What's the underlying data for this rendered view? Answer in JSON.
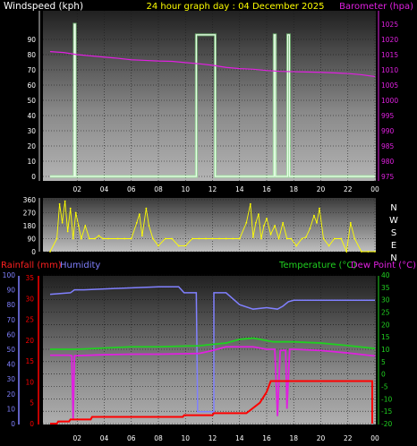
{
  "header": {
    "left_label": "Windspeed (kph)",
    "center_label": "24 hour graph day : 04 December 2025",
    "right_label": "Barometer (hpa)"
  },
  "colors": {
    "wind": "#e8ffe8",
    "barometer": "#e020e0",
    "direction": "#ffff00",
    "rain": "#ff0000",
    "humidity": "#8080ff",
    "temperature": "#20d020",
    "dewpoint": "#e020e0",
    "header_yellow": "#ffff00"
  },
  "time_ticks": [
    "02",
    "04",
    "06",
    "08",
    "10",
    "12",
    "14",
    "16",
    "18",
    "20",
    "22",
    "00"
  ],
  "chart_data": [
    {
      "type": "line",
      "x_unit": "hour",
      "xlim": [
        0,
        24
      ],
      "series": [
        {
          "axis": "left",
          "ylim": [
            0,
            100
          ],
          "ticks": [
            0,
            10,
            20,
            30,
            40,
            50,
            60,
            70,
            80,
            90
          ],
          "points": [
            [
              0,
              0
            ],
            [
              1.78,
              0
            ],
            [
              1.78,
              100
            ],
            [
              1.86,
              100
            ],
            [
              1.86,
              0
            ],
            [
              10.8,
              0
            ],
            [
              10.8,
              93
            ],
            [
              12.2,
              93
            ],
            [
              12.2,
              0
            ],
            [
              16.55,
              0
            ],
            [
              16.55,
              93
            ],
            [
              16.65,
              93
            ],
            [
              16.65,
              0
            ],
            [
              17.55,
              0
            ],
            [
              17.55,
              93
            ],
            [
              17.68,
              93
            ],
            [
              17.68,
              0
            ],
            [
              24,
              0
            ]
          ]
        },
        {
          "axis": "right",
          "ylim": [
            975,
            1025
          ],
          "ticks": [
            975,
            980,
            985,
            990,
            995,
            1000,
            1005,
            1010,
            1015,
            1020,
            1025
          ],
          "points": [
            [
              0,
              1016
            ],
            [
              1,
              1015.7
            ],
            [
              2,
              1015
            ],
            [
              3,
              1014.6
            ],
            [
              4,
              1014.2
            ],
            [
              5,
              1013.8
            ],
            [
              6,
              1013.3
            ],
            [
              7,
              1013.1
            ],
            [
              8,
              1012.9
            ],
            [
              9,
              1012.8
            ],
            [
              10,
              1012.4
            ],
            [
              11,
              1012
            ],
            [
              12,
              1011.5
            ],
            [
              13,
              1010.8
            ],
            [
              14,
              1010.4
            ],
            [
              15,
              1010.2
            ],
            [
              16,
              1009.8
            ],
            [
              17,
              1009.5
            ],
            [
              18,
              1009.4
            ],
            [
              19,
              1009.3
            ],
            [
              20,
              1009.2
            ],
            [
              21,
              1009
            ],
            [
              22,
              1008.8
            ],
            [
              23,
              1008.4
            ],
            [
              24,
              1007.8
            ]
          ]
        }
      ]
    },
    {
      "type": "scatter",
      "x_unit": "hour",
      "xlim": [
        0,
        24
      ],
      "ylim": [
        0,
        360
      ],
      "yticks": [
        0,
        90,
        180,
        270,
        360
      ],
      "compass_labels": [
        "N",
        "W",
        "S",
        "E",
        "N"
      ],
      "points": [
        [
          0,
          0
        ],
        [
          0.5,
          90
        ],
        [
          0.7,
          330
        ],
        [
          0.9,
          200
        ],
        [
          1.1,
          350
        ],
        [
          1.3,
          140
        ],
        [
          1.5,
          300
        ],
        [
          1.7,
          90
        ],
        [
          1.9,
          270
        ],
        [
          2.1,
          180
        ],
        [
          2.3,
          90
        ],
        [
          2.6,
          180
        ],
        [
          2.9,
          90
        ],
        [
          3.3,
          90
        ],
        [
          3.6,
          110
        ],
        [
          3.9,
          90
        ],
        [
          4.3,
          90
        ],
        [
          5,
          90
        ],
        [
          5.5,
          90
        ],
        [
          6,
          90
        ],
        [
          6.4,
          200
        ],
        [
          6.6,
          260
        ],
        [
          6.8,
          110
        ],
        [
          7.1,
          300
        ],
        [
          7.3,
          180
        ],
        [
          7.6,
          90
        ],
        [
          8,
          40
        ],
        [
          8.5,
          90
        ],
        [
          9,
          90
        ],
        [
          9.5,
          40
        ],
        [
          10,
          40
        ],
        [
          10.5,
          90
        ],
        [
          11,
          90
        ],
        [
          11.5,
          90
        ],
        [
          12,
          90
        ],
        [
          12.5,
          90
        ],
        [
          13,
          90
        ],
        [
          13.5,
          90
        ],
        [
          14,
          90
        ],
        [
          14.5,
          200
        ],
        [
          14.8,
          330
        ],
        [
          15,
          100
        ],
        [
          15.2,
          200
        ],
        [
          15.4,
          260
        ],
        [
          15.6,
          90
        ],
        [
          15.8,
          180
        ],
        [
          16,
          230
        ],
        [
          16.3,
          120
        ],
        [
          16.6,
          180
        ],
        [
          16.9,
          90
        ],
        [
          17.2,
          200
        ],
        [
          17.5,
          90
        ],
        [
          17.8,
          90
        ],
        [
          18.2,
          40
        ],
        [
          18.6,
          90
        ],
        [
          18.9,
          100
        ],
        [
          19.2,
          160
        ],
        [
          19.5,
          250
        ],
        [
          19.7,
          200
        ],
        [
          19.9,
          300
        ],
        [
          20.2,
          90
        ],
        [
          20.6,
          40
        ],
        [
          21,
          90
        ],
        [
          21.5,
          90
        ],
        [
          21.9,
          0
        ],
        [
          22.2,
          200
        ],
        [
          22.5,
          90
        ],
        [
          23,
          0
        ],
        [
          23.5,
          0
        ],
        [
          24,
          0
        ]
      ]
    },
    {
      "type": "line",
      "x_unit": "hour",
      "xlim": [
        0,
        24
      ],
      "axes": {
        "rainfall": {
          "ylim": [
            0,
            35
          ],
          "ticks": [
            0,
            5,
            10,
            15,
            20,
            25,
            30,
            35
          ]
        },
        "humidity": {
          "ylim": [
            0,
            100
          ],
          "ticks": [
            0,
            10,
            20,
            30,
            40,
            50,
            60,
            70,
            80,
            90,
            100
          ]
        },
        "temperature": {
          "ylim": [
            -20,
            40
          ],
          "ticks": [
            -20,
            -15,
            -10,
            -5,
            0,
            5,
            10,
            15,
            20,
            25,
            30,
            35,
            40
          ]
        }
      },
      "series": [
        {
          "axis": "rainfall",
          "points": [
            [
              0,
              0
            ],
            [
              0.5,
              0
            ],
            [
              0.6,
              0.5
            ],
            [
              1.4,
              0.5
            ],
            [
              1.5,
              1
            ],
            [
              3,
              1
            ],
            [
              3.1,
              1.6
            ],
            [
              9.8,
              1.6
            ],
            [
              9.9,
              2
            ],
            [
              12,
              2
            ],
            [
              12.1,
              2.5
            ],
            [
              14.5,
              2.5
            ],
            [
              15.5,
              5
            ],
            [
              16,
              7.6
            ],
            [
              16.3,
              10.2
            ],
            [
              17.4,
              10.2
            ],
            [
              23.8,
              10.2
            ],
            [
              23.8,
              0
            ]
          ]
        },
        {
          "axis": "humidity",
          "points": [
            [
              0,
              87
            ],
            [
              1.5,
              88
            ],
            [
              1.8,
              90
            ],
            [
              2.5,
              90
            ],
            [
              5,
              91
            ],
            [
              8,
              92
            ],
            [
              9.5,
              92
            ],
            [
              9.9,
              88
            ],
            [
              10.8,
              88
            ],
            [
              10.9,
              8
            ],
            [
              12.1,
              8
            ],
            [
              12.1,
              88
            ],
            [
              13,
              88
            ],
            [
              14,
              80
            ],
            [
              15,
              77
            ],
            [
              16,
              78
            ],
            [
              16.8,
              77
            ],
            [
              17.2,
              79
            ],
            [
              17.6,
              82
            ],
            [
              18,
              83
            ],
            [
              20,
              83
            ],
            [
              22,
              83
            ],
            [
              24,
              83
            ]
          ]
        },
        {
          "axis": "temperature",
          "points": [
            [
              0,
              10
            ],
            [
              2,
              10
            ],
            [
              4,
              10.5
            ],
            [
              6,
              11
            ],
            [
              8,
              11
            ],
            [
              10,
              11.3
            ],
            [
              11,
              11.4
            ],
            [
              12,
              12
            ],
            [
              13,
              12.5
            ],
            [
              14,
              14
            ],
            [
              15,
              14.5
            ],
            [
              16,
              13.5
            ],
            [
              16.5,
              13
            ],
            [
              17,
              13
            ],
            [
              18,
              13
            ],
            [
              20,
              12.5
            ],
            [
              22,
              11.5
            ],
            [
              24,
              10.3
            ]
          ]
        },
        {
          "axis": "temperature",
          "points": [
            [
              0,
              7.6
            ],
            [
              1.4,
              7.6
            ],
            [
              1.6,
              7.4
            ],
            [
              1.7,
              -18
            ],
            [
              1.8,
              7.4
            ],
            [
              4,
              7.8
            ],
            [
              6,
              8
            ],
            [
              8,
              8
            ],
            [
              10,
              8.2
            ],
            [
              11,
              8.3
            ],
            [
              12,
              9.5
            ],
            [
              13,
              11
            ],
            [
              14,
              11
            ],
            [
              15,
              11
            ],
            [
              16,
              10
            ],
            [
              16.6,
              10
            ],
            [
              16.8,
              -17
            ],
            [
              17,
              9.5
            ],
            [
              17.4,
              9.6
            ],
            [
              17.5,
              -14
            ],
            [
              17.7,
              10
            ],
            [
              18,
              10
            ],
            [
              20,
              9.5
            ],
            [
              22,
              8.5
            ],
            [
              24,
              7.3
            ]
          ]
        }
      ]
    }
  ],
  "bottom_header": {
    "rain_label": "Rainfall (mm)",
    "humidity_label": "Humidity",
    "temp_label": "Temperature (°C)",
    "dew_label": "Dew Point (°C)"
  }
}
